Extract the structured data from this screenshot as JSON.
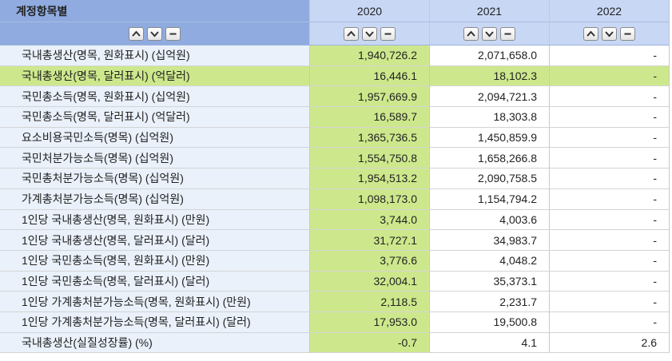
{
  "header": {
    "item_col": "계정항목별",
    "years": [
      "2020",
      "2021",
      "2022"
    ]
  },
  "rows": [
    {
      "label": "국내총생산(명목, 원화표시) (십억원)",
      "v2020": "1,940,726.2",
      "v2021": "2,071,658.0",
      "v2022": "-"
    },
    {
      "label": "국내총생산(명목, 달러표시) (억달러)",
      "v2020": "16,446.1",
      "v2021": "18,102.3",
      "v2022": "-"
    },
    {
      "label": "국민총소득(명목, 원화표시) (십억원)",
      "v2020": "1,957,669.9",
      "v2021": "2,094,721.3",
      "v2022": "-"
    },
    {
      "label": "국민총소득(명목, 달러표시) (억달러)",
      "v2020": "16,589.7",
      "v2021": "18,303.8",
      "v2022": "-"
    },
    {
      "label": "요소비용국민소득(명목) (십억원)",
      "v2020": "1,365,736.5",
      "v2021": "1,450,859.9",
      "v2022": "-"
    },
    {
      "label": "국민처분가능소득(명목) (십억원)",
      "v2020": "1,554,750.8",
      "v2021": "1,658,266.8",
      "v2022": "-"
    },
    {
      "label": "국민총처분가능소득(명목) (십억원)",
      "v2020": "1,954,513.2",
      "v2021": "2,090,758.5",
      "v2022": "-"
    },
    {
      "label": "가계총처분가능소득(명목) (십억원)",
      "v2020": "1,098,173.0",
      "v2021": "1,154,794.2",
      "v2022": "-"
    },
    {
      "label": "1인당 국내총생산(명목, 원화표시) (만원)",
      "v2020": "3,744.0",
      "v2021": "4,003.6",
      "v2022": "-"
    },
    {
      "label": "1인당 국내총생산(명목, 달러표시) (달러)",
      "v2020": "31,727.1",
      "v2021": "34,983.7",
      "v2022": "-"
    },
    {
      "label": "1인당 국민총소득(명목, 원화표시) (만원)",
      "v2020": "3,776.6",
      "v2021": "4,048.2",
      "v2022": "-"
    },
    {
      "label": "1인당 국민총소득(명목, 달러표시) (달러)",
      "v2020": "32,004.1",
      "v2021": "35,373.1",
      "v2022": "-"
    },
    {
      "label": "1인당 가계총처분가능소득(명목, 원화표시) (만원)",
      "v2020": "2,118.5",
      "v2021": "2,231.7",
      "v2022": "-"
    },
    {
      "label": "1인당 가계총처분가능소득(명목, 달러표시) (달러)",
      "v2020": "17,953.0",
      "v2021": "19,500.8",
      "v2022": "-"
    },
    {
      "label": "국내총생산(실질성장률) (%)",
      "v2020": "-0.7",
      "v2021": "4.1",
      "v2022": "2.6"
    }
  ],
  "highlighted_row": 1,
  "colors": {
    "header_item_bg": "#8fabe0",
    "header_year_bg": "#c7d7f4",
    "label_bg": "#eaf1fb",
    "highlight_green": "#cde88c"
  },
  "icons": [
    "sort-ascending-icon",
    "sort-descending-icon",
    "remove-column-icon"
  ]
}
